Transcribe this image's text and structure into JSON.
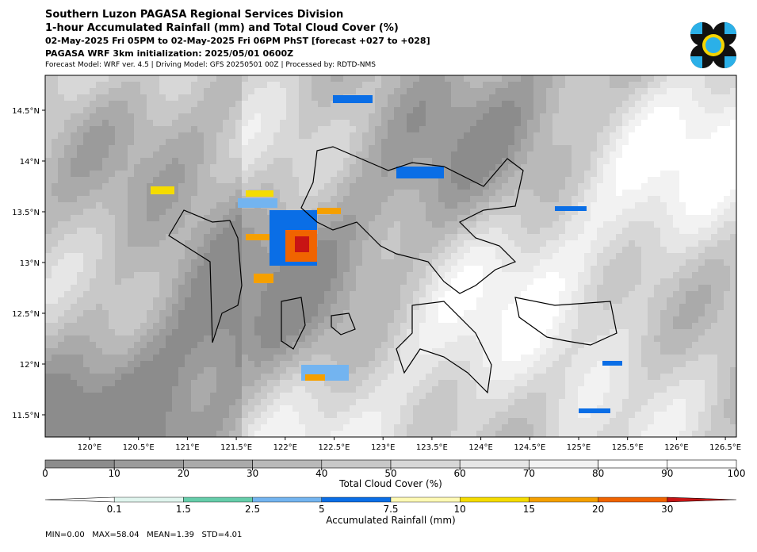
{
  "header": {
    "title_lines": [
      "Southern Luzon PAGASA Regional Services Division",
      "1-hour Accumulated Rainfall (mm) and Total Cloud Cover (%)",
      "02-May-2025 Fri 05PM to 02-May-2025 Fri 06PM PhST [forecast +027 to +028]",
      "PAGASA WRF 3km initialization: 2025/05/01 0600Z"
    ],
    "model_line": "Forecast Model: WRF ver. 4.5 | Driving Model: GFS 20250501 00Z | Processed by: RDTD-NMS"
  },
  "map": {
    "lon_ticks": [
      "120°E",
      "120.5°E",
      "121°E",
      "121.5°E",
      "122°E",
      "122.5°E",
      "123°E",
      "123.5°E",
      "124°E",
      "124.5°E",
      "125°E",
      "125.5°E",
      "126°E",
      "126.5°E"
    ],
    "lat_ticks": [
      "14.5°N",
      "14°N",
      "13.5°N",
      "13°N",
      "12.5°N",
      "12°N",
      "11.5°N"
    ]
  },
  "cloud_colorbar": {
    "label": "Total Cloud Cover (%)",
    "ticks": [
      0,
      10,
      20,
      30,
      40,
      50,
      60,
      70,
      80,
      90,
      100
    ]
  },
  "rain_colorbar": {
    "label": "Accumulated Rainfall (mm)",
    "ticks": [
      "0.1",
      "1.5",
      "2.5",
      "5",
      "7.5",
      "10",
      "15",
      "20",
      "30"
    ]
  },
  "footer": {
    "stats": "MIN=0.00   MAX=58.04   MEAN=1.39   STD=4.01"
  }
}
